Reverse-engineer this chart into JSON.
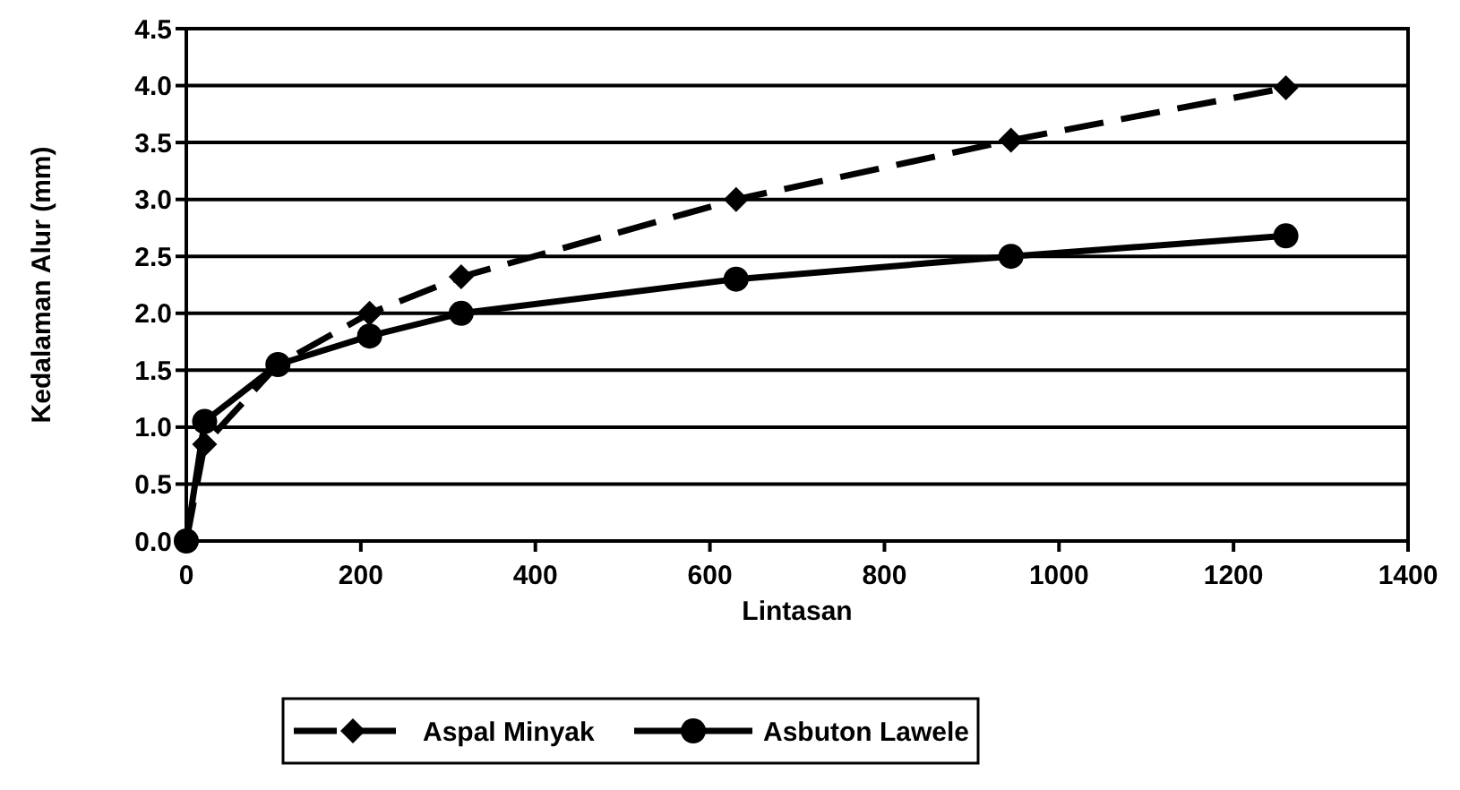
{
  "chart_data": {
    "type": "line",
    "xlabel": "Lintasan",
    "ylabel": "Kedalaman Alur (mm)",
    "xlim": [
      0,
      1400
    ],
    "xticks": [
      0,
      200,
      400,
      600,
      800,
      1000,
      1200,
      1400
    ],
    "ylim": [
      0,
      4.5
    ],
    "yticks": [
      {
        "value": 0,
        "label": "0.0"
      },
      {
        "value": 0.5,
        "label": "0.5"
      },
      {
        "value": 1,
        "label": "1.0"
      },
      {
        "value": 1.5,
        "label": "1.5"
      },
      {
        "value": 2,
        "label": "2.0"
      },
      {
        "value": 2.5,
        "label": "2.5"
      },
      {
        "value": 3,
        "label": "3.0"
      },
      {
        "value": 3.5,
        "label": "3.5"
      },
      {
        "value": 4,
        "label": "4.0"
      },
      {
        "value": 4.5,
        "label": "4.5"
      }
    ],
    "grid": "y",
    "legend": "bottom",
    "x": [
      0,
      21,
      105,
      210,
      315,
      630,
      945,
      1260
    ],
    "series": [
      {
        "name": "Aspal Minyak",
        "color": "#000000",
        "marker": "diamond",
        "line_style": "dashed",
        "values": [
          0,
          0.85,
          1.55,
          2.0,
          2.32,
          3.0,
          3.52,
          3.98
        ]
      },
      {
        "name": "Asbuton Lawele",
        "color": "#000000",
        "marker": "circle",
        "line_style": "solid",
        "values": [
          0,
          1.05,
          1.55,
          1.8,
          2.0,
          2.3,
          2.5,
          2.68
        ]
      }
    ]
  }
}
